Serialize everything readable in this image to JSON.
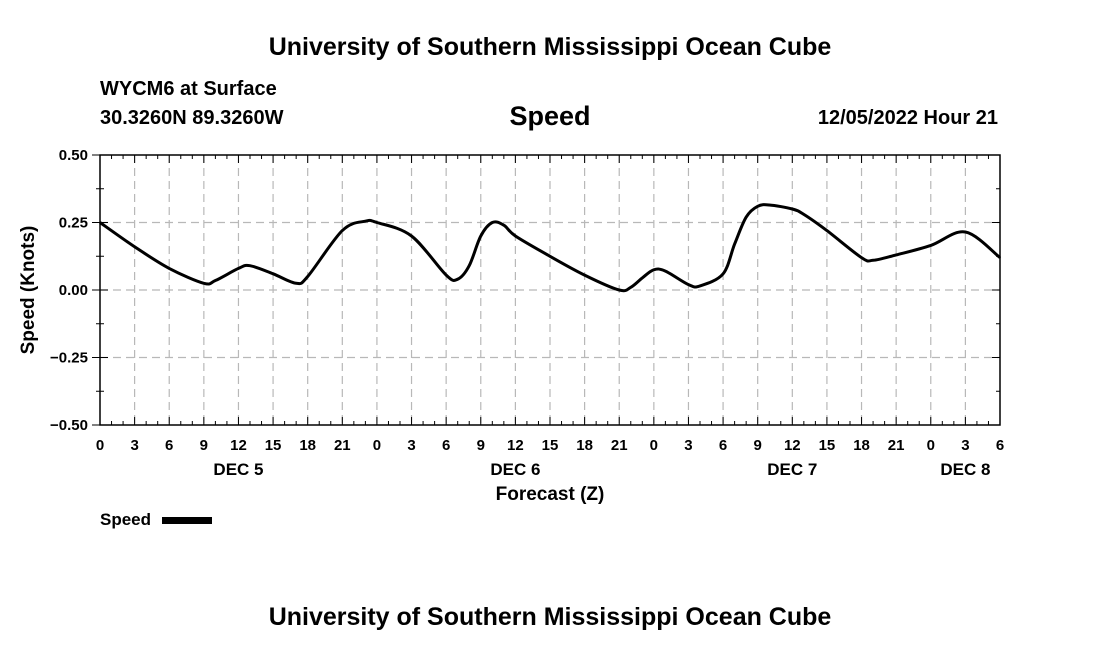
{
  "header": {
    "title": "University of Southern Mississippi Ocean Cube",
    "station": "WYCM6 at Surface",
    "coords": "30.3260N  89.3260W",
    "variable": "Speed",
    "datetime": "12/05/2022 Hour 21",
    "footer_title": "University of Southern Mississippi Ocean Cube"
  },
  "legend": {
    "label": "Speed"
  },
  "colors": {
    "line": "#000000",
    "grid": "#b8b8b8"
  },
  "chart_data": {
    "type": "line",
    "title": "Speed",
    "xlabel": "Forecast (Z)",
    "ylabel": "Speed (Knots)",
    "ylim": [
      -0.5,
      0.5
    ],
    "y_ticks": [
      0.5,
      0.25,
      0.0,
      -0.25,
      -0.5
    ],
    "y_tick_labels": [
      "0.50",
      "0.25",
      "0.00",
      "−0.25",
      "−0.50"
    ],
    "xlim": [
      0,
      78
    ],
    "x_ticks": [
      0,
      3,
      6,
      9,
      12,
      15,
      18,
      21,
      24,
      27,
      30,
      33,
      36,
      39,
      42,
      45,
      48,
      51,
      54,
      57,
      60,
      63,
      66,
      69,
      72,
      75,
      78
    ],
    "x_tick_labels": [
      "0",
      "3",
      "6",
      "9",
      "12",
      "15",
      "18",
      "21",
      "0",
      "3",
      "6",
      "9",
      "12",
      "15",
      "18",
      "21",
      "0",
      "3",
      "6",
      "9",
      "12",
      "15",
      "18",
      "21",
      "0",
      "3",
      "6"
    ],
    "day_labels": [
      {
        "label": "DEC 5",
        "x": 12
      },
      {
        "label": "DEC 6",
        "x": 36
      },
      {
        "label": "DEC 7",
        "x": 60
      },
      {
        "label": "DEC 8",
        "x": 75
      }
    ],
    "grid": true,
    "legend_position": "bottom-left",
    "series": [
      {
        "name": "Speed",
        "x": [
          0,
          3,
          6,
          9,
          10,
          12,
          13,
          15,
          17,
          18,
          21,
          23,
          24,
          27,
          30,
          31,
          32,
          33,
          34,
          35,
          36,
          39,
          42,
          45,
          46,
          47,
          48,
          49,
          51,
          52,
          54,
          55,
          56,
          57,
          58,
          60,
          61,
          63,
          66,
          67,
          69,
          72,
          75,
          78
        ],
        "y": [
          0.25,
          0.16,
          0.08,
          0.025,
          0.035,
          0.08,
          0.09,
          0.06,
          0.025,
          0.05,
          0.22,
          0.255,
          0.25,
          0.2,
          0.055,
          0.04,
          0.09,
          0.2,
          0.25,
          0.24,
          0.2,
          0.125,
          0.055,
          0.0,
          0.01,
          0.045,
          0.075,
          0.07,
          0.02,
          0.015,
          0.06,
          0.17,
          0.27,
          0.31,
          0.315,
          0.3,
          0.28,
          0.22,
          0.12,
          0.11,
          0.13,
          0.165,
          0.215,
          0.12
        ]
      }
    ]
  }
}
